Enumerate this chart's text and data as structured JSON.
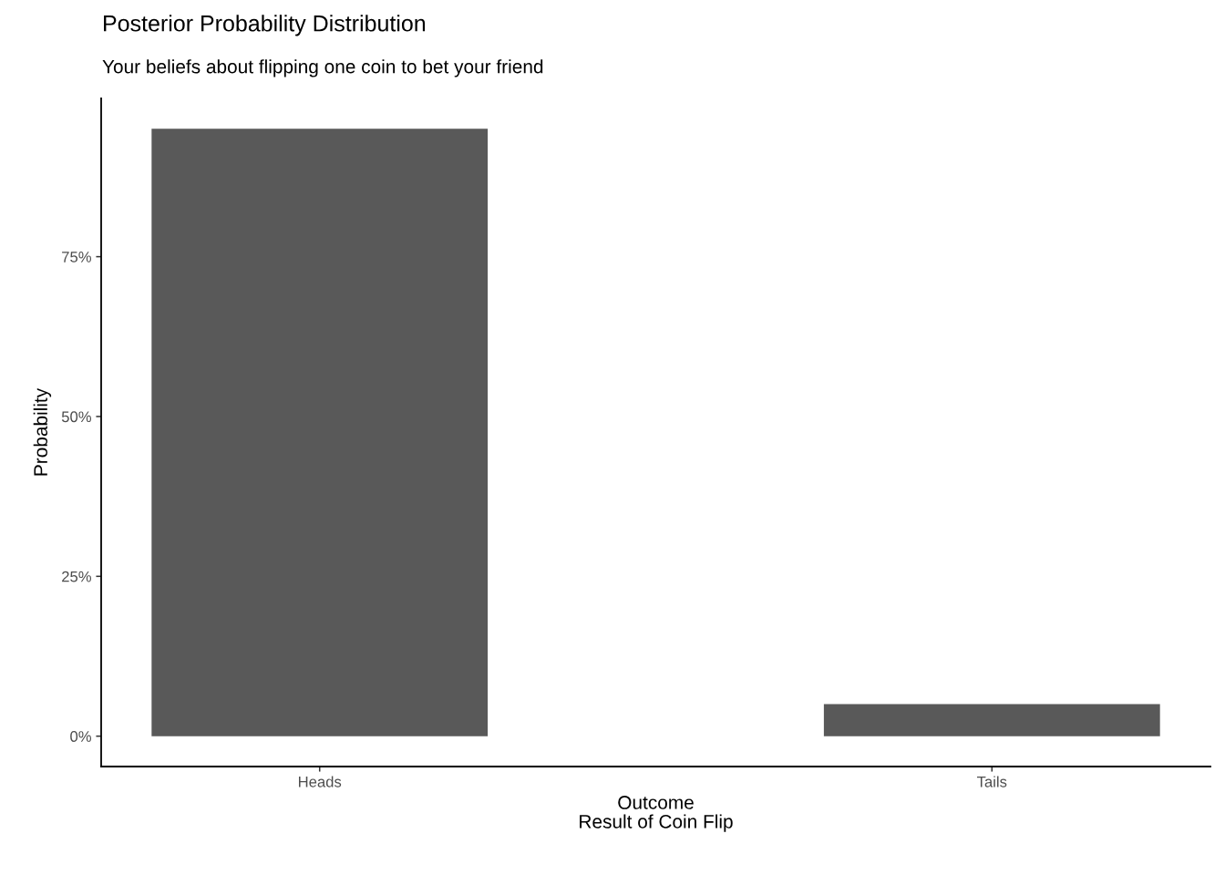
{
  "chart_data": {
    "type": "bar",
    "title": "Posterior Probability Distribution",
    "subtitle": "Your beliefs about flipping one coin to bet your friend",
    "xlabel": "Outcome\nResult of Coin Flip",
    "ylabel": "Probability",
    "categories": [
      "Heads",
      "Tails"
    ],
    "values": [
      95,
      5
    ],
    "color": "#595959",
    "ylim": [
      -4.75,
      99.75
    ],
    "yticks": [
      {
        "value": 0,
        "label": "0%"
      },
      {
        "value": 25,
        "label": "25%"
      },
      {
        "value": 50,
        "label": "50%"
      },
      {
        "value": 75,
        "label": "75%"
      }
    ],
    "grid": false
  }
}
